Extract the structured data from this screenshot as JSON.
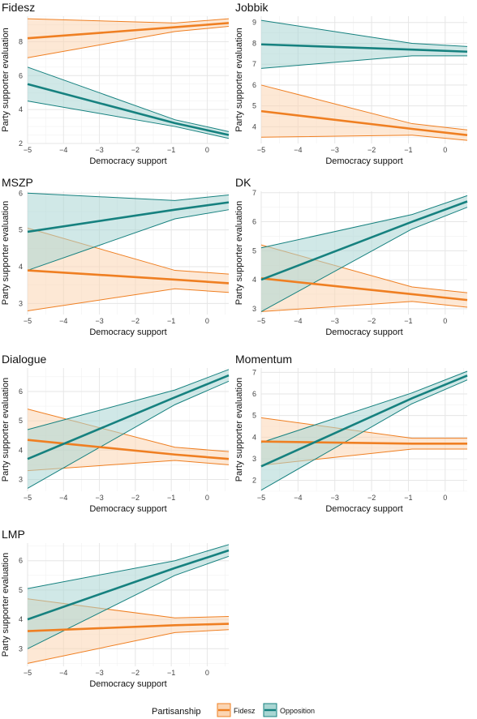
{
  "chart_data": [
    {
      "type": "line",
      "title": "Fidesz",
      "xlabel": "Democracy support",
      "ylabel": "Party supporter evaluation",
      "xlim": [
        -5,
        0.6
      ],
      "ylim": [
        2,
        9.5
      ],
      "xticks": [
        -5,
        -4,
        -3,
        -2,
        -1,
        0
      ],
      "yticks": [
        2,
        4,
        6,
        8
      ],
      "series": [
        {
          "name": "Fidesz",
          "x": [
            -5,
            -0.9,
            0.6
          ],
          "y": [
            8.2,
            8.85,
            9.1
          ],
          "lower": [
            7.05,
            8.6,
            8.9
          ],
          "upper": [
            9.35,
            9.1,
            9.35
          ]
        },
        {
          "name": "Opposition",
          "x": [
            -5,
            -0.9,
            0.6
          ],
          "y": [
            5.5,
            3.2,
            2.5
          ],
          "lower": [
            4.5,
            3.0,
            2.3
          ],
          "upper": [
            6.5,
            3.4,
            2.7
          ]
        }
      ]
    },
    {
      "type": "line",
      "title": "Jobbik",
      "xlabel": "Democracy support",
      "ylabel": "Party supporter evaluation",
      "xlim": [
        -5,
        0.6
      ],
      "ylim": [
        3.2,
        9.3
      ],
      "xticks": [
        -5,
        -4,
        -3,
        -2,
        -1,
        0
      ],
      "yticks": [
        4,
        5,
        6,
        7,
        8,
        9
      ],
      "series": [
        {
          "name": "Fidesz",
          "x": [
            -5,
            -0.9,
            0.6
          ],
          "y": [
            4.75,
            3.9,
            3.6
          ],
          "lower": [
            3.5,
            3.6,
            3.35
          ],
          "upper": [
            6.0,
            4.15,
            3.85
          ]
        },
        {
          "name": "Opposition",
          "x": [
            -5,
            -0.9,
            0.6
          ],
          "y": [
            7.95,
            7.7,
            7.6
          ],
          "lower": [
            6.8,
            7.4,
            7.4
          ],
          "upper": [
            9.1,
            8.0,
            7.85
          ]
        }
      ]
    },
    {
      "type": "line",
      "title": "MSZP",
      "xlabel": "Democracy support",
      "ylabel": "Party supporter evaluation",
      "xlim": [
        -5,
        0.6
      ],
      "ylim": [
        2.7,
        6.05
      ],
      "xticks": [
        -5,
        -4,
        -3,
        -2,
        -1,
        0
      ],
      "yticks": [
        3,
        4,
        5,
        6
      ],
      "series": [
        {
          "name": "Fidesz",
          "x": [
            -5,
            -0.9,
            0.6
          ],
          "y": [
            3.9,
            3.65,
            3.55
          ],
          "lower": [
            2.8,
            3.4,
            3.3
          ],
          "upper": [
            5.05,
            3.9,
            3.8
          ]
        },
        {
          "name": "Opposition",
          "x": [
            -5,
            -0.9,
            0.6
          ],
          "y": [
            4.95,
            5.55,
            5.75
          ],
          "lower": [
            3.9,
            5.3,
            5.55
          ],
          "upper": [
            6.0,
            5.8,
            5.95
          ]
        }
      ]
    },
    {
      "type": "line",
      "title": "DK",
      "xlabel": "Democracy support",
      "ylabel": "Party supporter evaluation",
      "xlim": [
        -5,
        0.6
      ],
      "ylim": [
        2.8,
        7.05
      ],
      "xticks": [
        -5,
        -4,
        -3,
        -2,
        -1,
        0
      ],
      "yticks": [
        3,
        4,
        5,
        6,
        7
      ],
      "series": [
        {
          "name": "Fidesz",
          "x": [
            -5,
            -0.9,
            0.6
          ],
          "y": [
            4.05,
            3.5,
            3.3
          ],
          "lower": [
            2.9,
            3.25,
            3.05
          ],
          "upper": [
            5.2,
            3.75,
            3.55
          ]
        },
        {
          "name": "Opposition",
          "x": [
            -5,
            -0.9,
            0.6
          ],
          "y": [
            4.0,
            6.0,
            6.7
          ],
          "lower": [
            2.9,
            5.75,
            6.5
          ],
          "upper": [
            5.1,
            6.25,
            6.9
          ]
        }
      ]
    },
    {
      "type": "line",
      "title": "Dialogue",
      "xlabel": "Democracy support",
      "ylabel": "Party supporter evaluation",
      "xlim": [
        -5,
        0.6
      ],
      "ylim": [
        2.6,
        6.8
      ],
      "xticks": [
        -5,
        -4,
        -3,
        -2,
        -1,
        0
      ],
      "yticks": [
        3,
        4,
        5,
        6
      ],
      "series": [
        {
          "name": "Fidesz",
          "x": [
            -5,
            -0.9,
            0.6
          ],
          "y": [
            4.35,
            3.85,
            3.7
          ],
          "lower": [
            3.3,
            3.65,
            3.5
          ],
          "upper": [
            5.4,
            4.1,
            3.95
          ]
        },
        {
          "name": "Opposition",
          "x": [
            -5,
            -0.9,
            0.6
          ],
          "y": [
            3.7,
            5.8,
            6.55
          ],
          "lower": [
            2.7,
            5.55,
            6.35
          ],
          "upper": [
            4.7,
            6.05,
            6.75
          ]
        }
      ]
    },
    {
      "type": "line",
      "title": "Momentum",
      "xlabel": "Democracy support",
      "ylabel": "Party supporter evaluation",
      "xlim": [
        -5,
        0.6
      ],
      "ylim": [
        1.5,
        7.2
      ],
      "xticks": [
        -5,
        -4,
        -3,
        -2,
        -1,
        0
      ],
      "yticks": [
        2,
        3,
        4,
        5,
        6,
        7
      ],
      "series": [
        {
          "name": "Fidesz",
          "x": [
            -5,
            -0.9,
            0.6
          ],
          "y": [
            3.8,
            3.7,
            3.7
          ],
          "lower": [
            2.7,
            3.45,
            3.45
          ],
          "upper": [
            4.9,
            3.95,
            3.95
          ]
        },
        {
          "name": "Opposition",
          "x": [
            -5,
            -0.9,
            0.6
          ],
          "y": [
            2.65,
            5.8,
            6.85
          ],
          "lower": [
            1.55,
            5.55,
            6.65
          ],
          "upper": [
            3.75,
            6.05,
            7.05
          ]
        }
      ]
    },
    {
      "type": "line",
      "title": "LMP",
      "xlabel": "Democracy support",
      "ylabel": "Party supporter evaluation",
      "xlim": [
        -5,
        0.6
      ],
      "ylim": [
        2.4,
        6.6
      ],
      "xticks": [
        -5,
        -4,
        -3,
        -2,
        -1,
        0
      ],
      "yticks": [
        3,
        4,
        5,
        6
      ],
      "series": [
        {
          "name": "Fidesz",
          "x": [
            -5,
            -0.9,
            0.6
          ],
          "y": [
            3.6,
            3.8,
            3.85
          ],
          "lower": [
            2.5,
            3.55,
            3.65
          ],
          "upper": [
            4.7,
            4.05,
            4.1
          ]
        },
        {
          "name": "Opposition",
          "x": [
            -5,
            -0.9,
            0.6
          ],
          "y": [
            4.0,
            5.75,
            6.35
          ],
          "lower": [
            3.0,
            5.5,
            6.15
          ],
          "upper": [
            5.05,
            6.0,
            6.55
          ]
        }
      ]
    }
  ],
  "legend": {
    "title": "Partisanship",
    "position": "bottom",
    "items": [
      {
        "name": "Fidesz",
        "color": "#ef7f22"
      },
      {
        "name": "Opposition",
        "color": "#16817f"
      }
    ]
  },
  "colors": {
    "Fidesz": "#ef7f22",
    "Fidesz_fill": "#fbd5b3",
    "Opposition": "#16817f",
    "Opposition_fill": "#a9d6d3",
    "grid": "#e6e6e6"
  },
  "grid": true
}
